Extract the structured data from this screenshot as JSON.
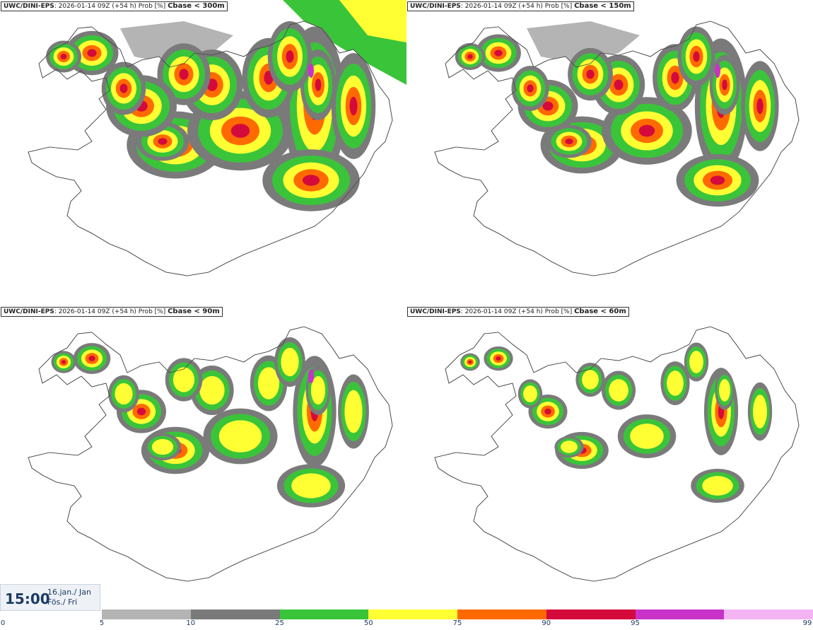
{
  "panels": [
    {
      "model": "UWC/DINI-EPS",
      "run": "2026-01-14 09Z (+54 h) Prob [%]",
      "label": "Cbase < 300m"
    },
    {
      "model": "UWC/DINI-EPS",
      "run": "2026-01-14 09Z (+54 h) Prob [%]",
      "label": "Cbase < 150m"
    },
    {
      "model": "UWC/DINI-EPS",
      "run": "2026-01-14 09Z (+54 h) Prob [%]",
      "label": "Cbase < 90m"
    },
    {
      "model": "UWC/DINI-EPS",
      "run": "2026-01-14 09Z (+54 h) Prob [%]",
      "label": "Cbase < 60m"
    }
  ],
  "valid_time": {
    "time": "15:00",
    "date_line1": "16.jan./ Jan",
    "date_line2": "Fös./ Fri"
  },
  "colorbar": {
    "ticks": [
      "0",
      "5",
      "10",
      "25",
      "50",
      "75",
      "90",
      "95",
      "99"
    ],
    "colors": [
      "#b4b4b4",
      "#7a7a7a",
      "#3ac43a",
      "#ffff33",
      "#ff6a00",
      "#d40a3c",
      "#c832c8",
      "#f4b4f4"
    ]
  }
}
